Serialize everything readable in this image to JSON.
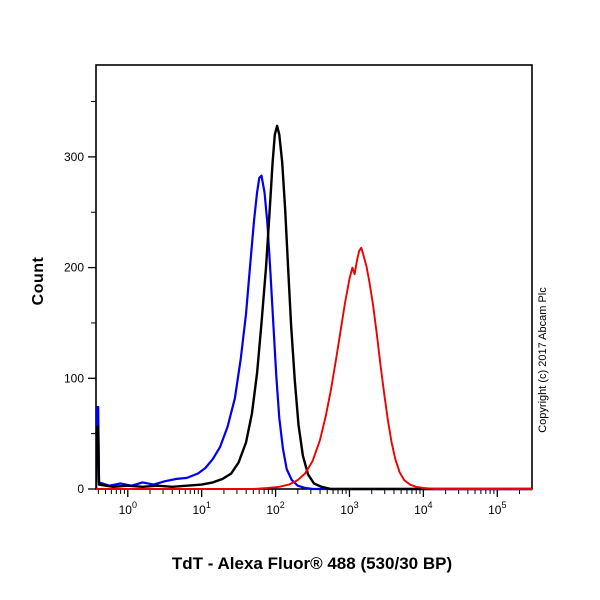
{
  "copyright": "Copyright (c) 2017 Abcam Plc",
  "chart_data": {
    "type": "line",
    "subtype": "flow-cytometry-histogram",
    "title": "",
    "xlabel": "TdT - Alexa Fluor® 488 (530/30 BP)",
    "ylabel": "Count",
    "x_scale": "log10",
    "x_range_log10": [
      -0.43,
      5.47
    ],
    "x_tick_exponents": [
      0,
      1,
      2,
      3,
      4,
      5
    ],
    "y_ticks": [
      0,
      100,
      200,
      300
    ],
    "y_minor_ticks": [
      50,
      150,
      250,
      350
    ],
    "ylim": [
      0,
      383
    ],
    "grid": false,
    "legend": "none",
    "frame_color": "#000000",
    "series": [
      {
        "name": "blue-curve",
        "color": "#0000ee",
        "stroke_width": 2.2,
        "peak": {
          "x_log10": 1.81,
          "count": 283
        },
        "points": [
          [
            -0.43,
            0
          ],
          [
            -0.42,
            74
          ],
          [
            -0.4,
            74
          ],
          [
            -0.39,
            6
          ],
          [
            -0.25,
            3
          ],
          [
            -0.1,
            5
          ],
          [
            0.05,
            3
          ],
          [
            0.2,
            6
          ],
          [
            0.35,
            4
          ],
          [
            0.5,
            7
          ],
          [
            0.65,
            9
          ],
          [
            0.8,
            10
          ],
          [
            0.95,
            14
          ],
          [
            1.05,
            19
          ],
          [
            1.15,
            27
          ],
          [
            1.25,
            38
          ],
          [
            1.35,
            56
          ],
          [
            1.45,
            82
          ],
          [
            1.53,
            118
          ],
          [
            1.6,
            158
          ],
          [
            1.66,
            205
          ],
          [
            1.71,
            243
          ],
          [
            1.75,
            268
          ],
          [
            1.78,
            281
          ],
          [
            1.81,
            283
          ],
          [
            1.85,
            268
          ],
          [
            1.89,
            240
          ],
          [
            1.93,
            196
          ],
          [
            1.97,
            148
          ],
          [
            2.01,
            102
          ],
          [
            2.05,
            64
          ],
          [
            2.1,
            36
          ],
          [
            2.15,
            18
          ],
          [
            2.22,
            8
          ],
          [
            2.3,
            3
          ],
          [
            2.4,
            1
          ],
          [
            2.5,
            0
          ],
          [
            5.47,
            0
          ]
        ]
      },
      {
        "name": "black-curve",
        "color": "#000000",
        "stroke_width": 2.4,
        "peak": {
          "x_log10": 2.02,
          "count": 328
        },
        "points": [
          [
            -0.43,
            0
          ],
          [
            -0.42,
            56
          ],
          [
            -0.4,
            56
          ],
          [
            -0.39,
            4
          ],
          [
            -0.2,
            2
          ],
          [
            0,
            3
          ],
          [
            0.2,
            2
          ],
          [
            0.4,
            3
          ],
          [
            0.6,
            2
          ],
          [
            0.8,
            3
          ],
          [
            1,
            4
          ],
          [
            1.15,
            6
          ],
          [
            1.28,
            9
          ],
          [
            1.4,
            14
          ],
          [
            1.5,
            24
          ],
          [
            1.6,
            42
          ],
          [
            1.68,
            68
          ],
          [
            1.75,
            105
          ],
          [
            1.81,
            150
          ],
          [
            1.87,
            200
          ],
          [
            1.92,
            252
          ],
          [
            1.96,
            295
          ],
          [
            1.99,
            320
          ],
          [
            2.02,
            328
          ],
          [
            2.05,
            320
          ],
          [
            2.09,
            295
          ],
          [
            2.13,
            252
          ],
          [
            2.17,
            200
          ],
          [
            2.21,
            148
          ],
          [
            2.26,
            98
          ],
          [
            2.31,
            58
          ],
          [
            2.37,
            30
          ],
          [
            2.44,
            13
          ],
          [
            2.52,
            5
          ],
          [
            2.62,
            2
          ],
          [
            2.75,
            0
          ],
          [
            5.47,
            0
          ]
        ]
      },
      {
        "name": "red-curve",
        "color": "#ee0000",
        "stroke_width": 1.9,
        "peak": {
          "x_log10": 3.16,
          "count": 218
        },
        "points": [
          [
            -0.43,
            0
          ],
          [
            1.7,
            0
          ],
          [
            1.9,
            1
          ],
          [
            2.05,
            2
          ],
          [
            2.18,
            4
          ],
          [
            2.3,
            8
          ],
          [
            2.4,
            14
          ],
          [
            2.5,
            25
          ],
          [
            2.6,
            44
          ],
          [
            2.68,
            66
          ],
          [
            2.75,
            90
          ],
          [
            2.82,
            118
          ],
          [
            2.88,
            143
          ],
          [
            2.94,
            168
          ],
          [
            3,
            190
          ],
          [
            3.04,
            200
          ],
          [
            3.07,
            194
          ],
          [
            3.1,
            206
          ],
          [
            3.13,
            215
          ],
          [
            3.16,
            218
          ],
          [
            3.19,
            211
          ],
          [
            3.23,
            201
          ],
          [
            3.27,
            187
          ],
          [
            3.32,
            166
          ],
          [
            3.37,
            140
          ],
          [
            3.42,
            112
          ],
          [
            3.47,
            86
          ],
          [
            3.52,
            62
          ],
          [
            3.57,
            42
          ],
          [
            3.62,
            27
          ],
          [
            3.68,
            15
          ],
          [
            3.74,
            8
          ],
          [
            3.82,
            4
          ],
          [
            3.9,
            2
          ],
          [
            4,
            1
          ],
          [
            4.15,
            0
          ],
          [
            5.47,
            0
          ]
        ]
      }
    ]
  }
}
